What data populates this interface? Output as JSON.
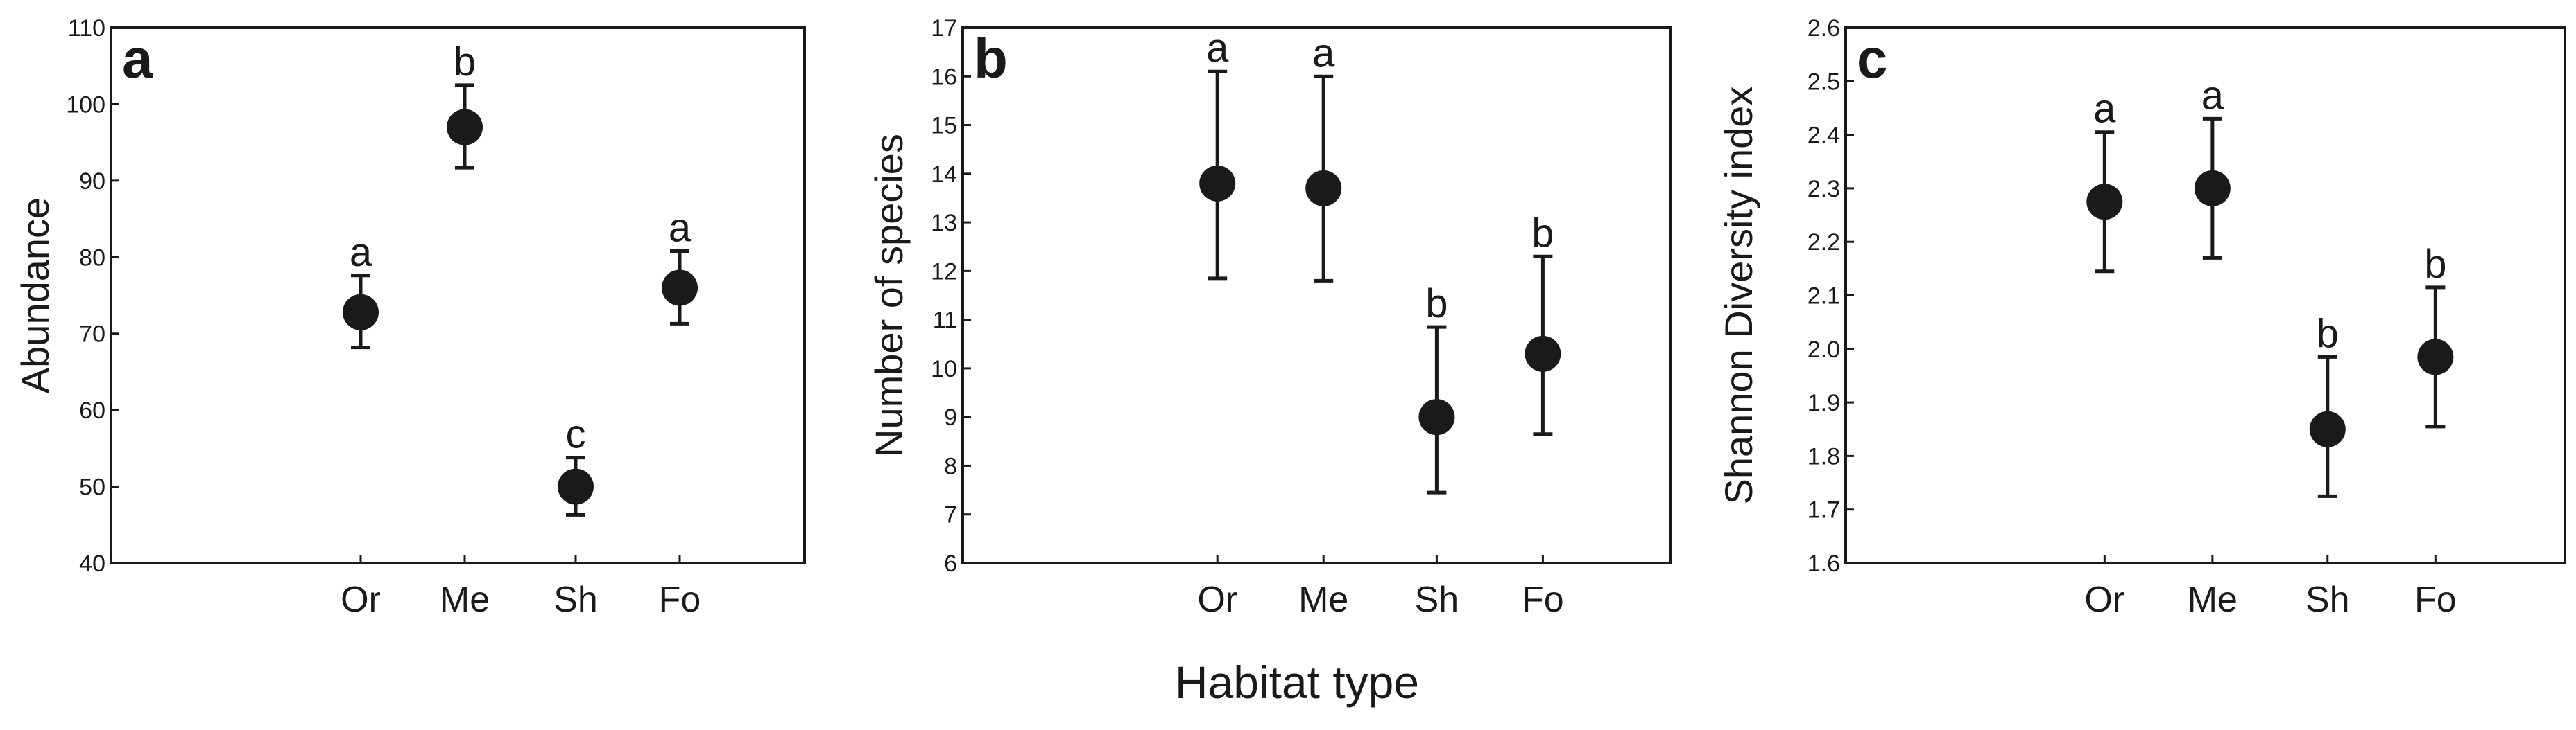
{
  "chart_data": {
    "x_title": "Habitat type",
    "panels": [
      {
        "type": "scatter",
        "panel_label": "a",
        "ylabel": "Abundance",
        "ylim": [
          40,
          110
        ],
        "yticks": [
          40,
          50,
          60,
          70,
          80,
          90,
          100,
          110
        ],
        "ytick_labels": [
          "40",
          "50",
          "60",
          "70",
          "80",
          "90",
          "100",
          "110"
        ],
        "categories": [
          "Or",
          "Me",
          "Sh",
          "Fo"
        ],
        "values": [
          72.8,
          97.0,
          50.0,
          76.0
        ],
        "err_upper": [
          77.6,
          102.5,
          53.8,
          80.8
        ],
        "err_lower": [
          68.2,
          91.7,
          46.3,
          71.3
        ],
        "sig_letters": [
          "a",
          "b",
          "c",
          "a"
        ]
      },
      {
        "type": "scatter",
        "panel_label": "b",
        "ylabel": "Number of species",
        "ylim": [
          6,
          17
        ],
        "yticks": [
          6,
          7,
          8,
          9,
          10,
          11,
          12,
          13,
          14,
          15,
          16,
          17
        ],
        "ytick_labels": [
          "6",
          "7",
          "8",
          "9",
          "10",
          "11",
          "12",
          "13",
          "14",
          "15",
          "16",
          "17"
        ],
        "categories": [
          "Or",
          "Me",
          "Sh",
          "Fo"
        ],
        "values": [
          13.8,
          13.7,
          9.0,
          10.3
        ],
        "err_upper": [
          16.1,
          16.0,
          10.85,
          12.3
        ],
        "err_lower": [
          11.85,
          11.8,
          7.45,
          8.65
        ],
        "sig_letters": [
          "a",
          "a",
          "b",
          "b"
        ]
      },
      {
        "type": "scatter",
        "panel_label": "c",
        "ylabel": "Shannon Diversity index",
        "ylim": [
          1.6,
          2.6
        ],
        "yticks": [
          1.6,
          1.7,
          1.8,
          1.9,
          2.0,
          2.1,
          2.2,
          2.3,
          2.4,
          2.5,
          2.6
        ],
        "ytick_labels": [
          "1.6",
          "1.7",
          "1.8",
          "1.9",
          "2.0",
          "2.1",
          "2.2",
          "2.3",
          "2.4",
          "2.5",
          "2.6"
        ],
        "categories": [
          "Or",
          "Me",
          "Sh",
          "Fo"
        ],
        "values": [
          2.275,
          2.3,
          1.85,
          1.985
        ],
        "err_upper": [
          2.405,
          2.43,
          1.985,
          2.115
        ],
        "err_lower": [
          2.145,
          2.17,
          1.725,
          1.855
        ],
        "sig_letters": [
          "a",
          "a",
          "b",
          "b"
        ]
      }
    ]
  }
}
